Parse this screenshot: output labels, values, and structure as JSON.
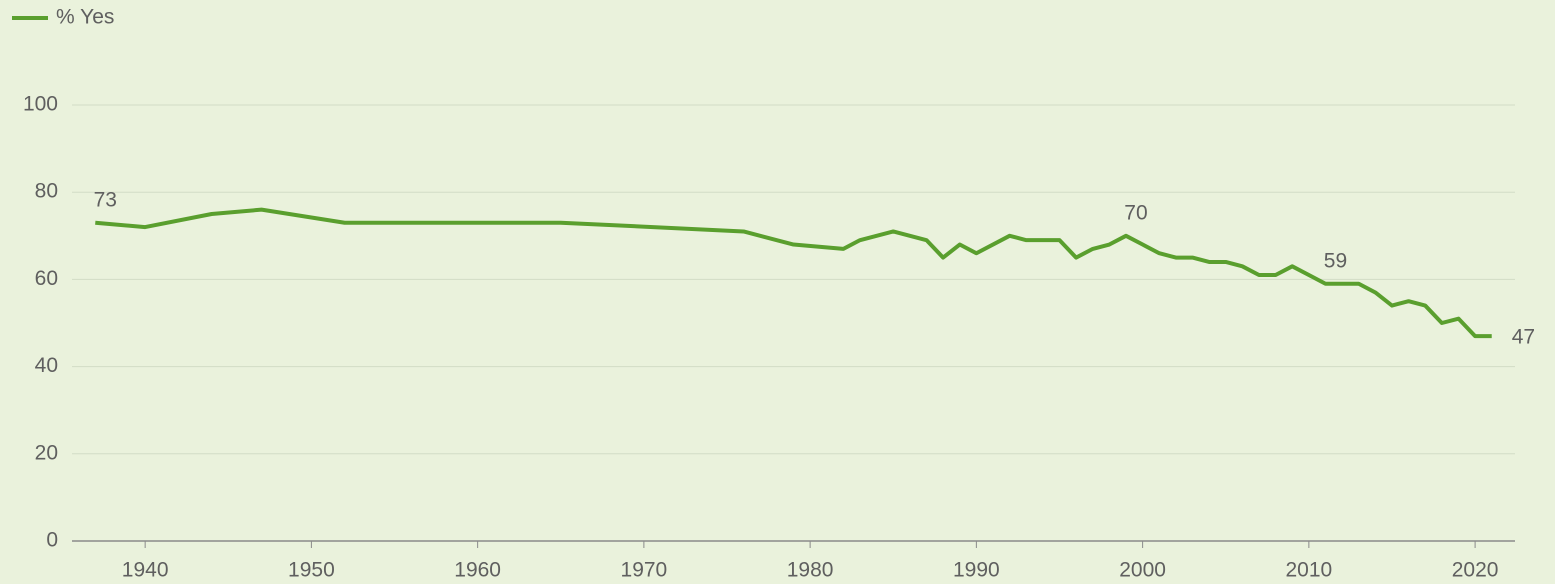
{
  "chart_data": {
    "type": "line",
    "x": [
      1937,
      1940,
      1944,
      1947,
      1952,
      1965,
      1976,
      1979,
      1982,
      1983,
      1985,
      1987,
      1988,
      1989,
      1990,
      1992,
      1993,
      1995,
      1996,
      1997,
      1998,
      1999,
      2000,
      2001,
      2002,
      2003,
      2004,
      2005,
      2006,
      2007,
      2008,
      2009,
      2010,
      2011,
      2012,
      2013,
      2014,
      2015,
      2016,
      2017,
      2018,
      2019,
      2020,
      2021
    ],
    "series": [
      {
        "name": "% Yes",
        "color": "#5a9f2e",
        "values": [
          73,
          72,
          75,
          76,
          73,
          73,
          71,
          68,
          67,
          69,
          71,
          69,
          65,
          68,
          66,
          70,
          69,
          69,
          65,
          67,
          68,
          70,
          68,
          66,
          65,
          65,
          64,
          64,
          63,
          61,
          61,
          63,
          61,
          59,
          59,
          59,
          57,
          54,
          55,
          54,
          50,
          51,
          47,
          47
        ],
        "value_labels": [
          "73",
          null,
          null,
          null,
          null,
          null,
          null,
          null,
          null,
          null,
          null,
          null,
          null,
          null,
          null,
          null,
          null,
          null,
          null,
          null,
          null,
          "70",
          null,
          null,
          null,
          null,
          null,
          null,
          null,
          null,
          null,
          null,
          null,
          "59",
          null,
          null,
          null,
          null,
          null,
          null,
          null,
          null,
          null,
          "47"
        ]
      }
    ],
    "xlim": [
      1935.6,
      2022.4
    ],
    "xticks": [
      1940,
      1950,
      1960,
      1970,
      1980,
      1990,
      2000,
      2010,
      2020
    ],
    "ylim": [
      0,
      100
    ],
    "yticks": [
      0,
      20,
      40,
      60,
      80,
      100
    ],
    "grid": true,
    "legend": "top-left"
  }
}
